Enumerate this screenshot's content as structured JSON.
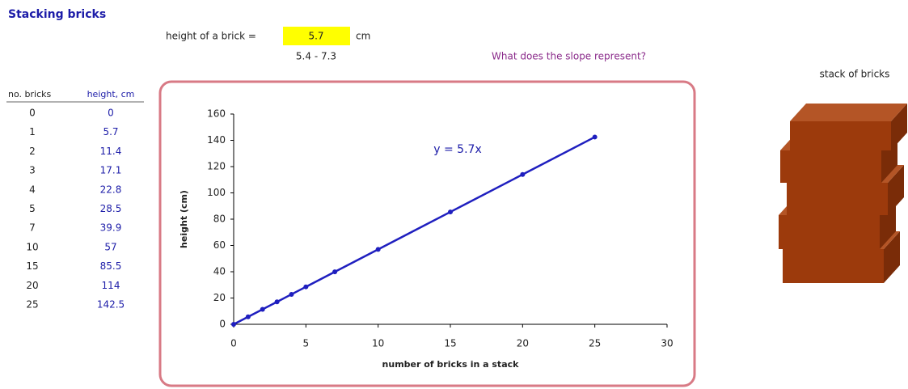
{
  "title": "Stacking bricks",
  "input": {
    "label": "height of a brick =",
    "value": 5.7,
    "unit": "cm",
    "range": "5.4 - 7.3"
  },
  "question": "What does the slope represent?",
  "table": {
    "headers": [
      "no. bricks",
      "height, cm"
    ]
  },
  "picture_label": "stack of bricks",
  "chart_data": {
    "type": "line",
    "x": [
      0,
      1,
      2,
      3,
      4,
      5,
      7,
      10,
      15,
      20,
      25
    ],
    "series": [
      {
        "name": "height, cm",
        "color": "#1f1fbf",
        "values": [
          0,
          5.7,
          11.4,
          17.1,
          22.8,
          28.5,
          39.9,
          57,
          85.5,
          114,
          142.5
        ]
      }
    ],
    "xlim": [
      0,
      30
    ],
    "xticks": [
      0,
      5,
      10,
      15,
      20,
      25,
      30
    ],
    "ylim": [
      0,
      160
    ],
    "yticks": [
      0,
      20,
      40,
      60,
      80,
      100,
      120,
      140,
      160
    ],
    "xlabel": "number of bricks in a stack",
    "ylabel": "height (cm)",
    "annotation": "y = 5.7x",
    "grid": false
  }
}
